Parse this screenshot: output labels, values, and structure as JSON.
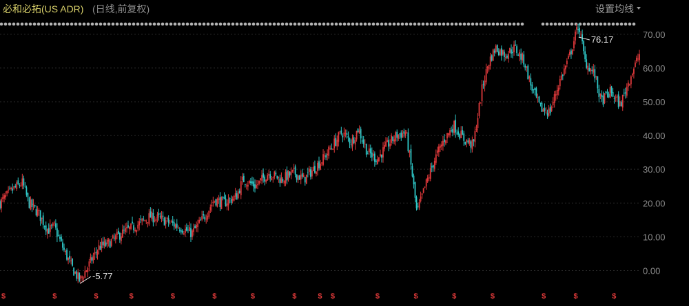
{
  "header": {
    "title": "必和必拓(US ADR)",
    "subtitle": "(日线,前复权)",
    "ma_setting_label": "设置均线"
  },
  "colors": {
    "up": "#e0393b",
    "down": "#2ec6c6",
    "grid": "#2a2a2a",
    "tick_text": "#8c8c8c",
    "event_marker": "#e23a3a",
    "title": "#d8d06a"
  },
  "chart_data": {
    "type": "candlestick",
    "y_axis": {
      "position": "right",
      "min": -5,
      "max": 72,
      "ticks": [
        "70.00",
        "60.00",
        "50.00",
        "40.00",
        "30.00",
        "20.00",
        "10.00",
        "0.00"
      ],
      "grid": true
    },
    "close_path": [
      [
        0,
        20
      ],
      [
        0.02,
        24
      ],
      [
        0.035,
        26
      ],
      [
        0.045,
        20
      ],
      [
        0.06,
        17
      ],
      [
        0.075,
        12
      ],
      [
        0.085,
        13
      ],
      [
        0.1,
        6
      ],
      [
        0.115,
        0
      ],
      [
        0.125,
        -3
      ],
      [
        0.14,
        2
      ],
      [
        0.155,
        7
      ],
      [
        0.17,
        8
      ],
      [
        0.19,
        11
      ],
      [
        0.21,
        13
      ],
      [
        0.235,
        16
      ],
      [
        0.255,
        15
      ],
      [
        0.28,
        13
      ],
      [
        0.3,
        11
      ],
      [
        0.32,
        16
      ],
      [
        0.335,
        21
      ],
      [
        0.35,
        20
      ],
      [
        0.37,
        22
      ],
      [
        0.38,
        27
      ],
      [
        0.4,
        25
      ],
      [
        0.42,
        29
      ],
      [
        0.44,
        27
      ],
      [
        0.46,
        29
      ],
      [
        0.475,
        27
      ],
      [
        0.49,
        30
      ],
      [
        0.505,
        33
      ],
      [
        0.52,
        37
      ],
      [
        0.535,
        41
      ],
      [
        0.55,
        38
      ],
      [
        0.56,
        42
      ],
      [
        0.575,
        35
      ],
      [
        0.59,
        33
      ],
      [
        0.605,
        37
      ],
      [
        0.62,
        40
      ],
      [
        0.635,
        41
      ],
      [
        0.645,
        28
      ],
      [
        0.652,
        17
      ],
      [
        0.665,
        25
      ],
      [
        0.68,
        33
      ],
      [
        0.695,
        39
      ],
      [
        0.71,
        43
      ],
      [
        0.725,
        39
      ],
      [
        0.74,
        37
      ],
      [
        0.755,
        55
      ],
      [
        0.765,
        62
      ],
      [
        0.775,
        66
      ],
      [
        0.79,
        64
      ],
      [
        0.805,
        66
      ],
      [
        0.82,
        62
      ],
      [
        0.83,
        55
      ],
      [
        0.845,
        48
      ],
      [
        0.86,
        47
      ],
      [
        0.875,
        56
      ],
      [
        0.89,
        63
      ],
      [
        0.905,
        73
      ],
      [
        0.915,
        62
      ],
      [
        0.93,
        58
      ],
      [
        0.94,
        50
      ],
      [
        0.955,
        53
      ],
      [
        0.97,
        49
      ],
      [
        0.985,
        57
      ],
      [
        1.0,
        64
      ]
    ],
    "annotations": [
      {
        "label": "76.17",
        "value": 76.17,
        "x_frac": 0.905,
        "kind": "high"
      },
      {
        "label": "-5.77",
        "value": -5.77,
        "x_frac": 0.125,
        "kind": "low"
      }
    ],
    "event_markers": {
      "glyph": "$",
      "x_frac": [
        0,
        0.08,
        0.145,
        0.2,
        0.265,
        0.33,
        0.39,
        0.455,
        0.495,
        0.515,
        0.585,
        0.645,
        0.705,
        0.765,
        0.845,
        0.895,
        0.955
      ]
    }
  }
}
